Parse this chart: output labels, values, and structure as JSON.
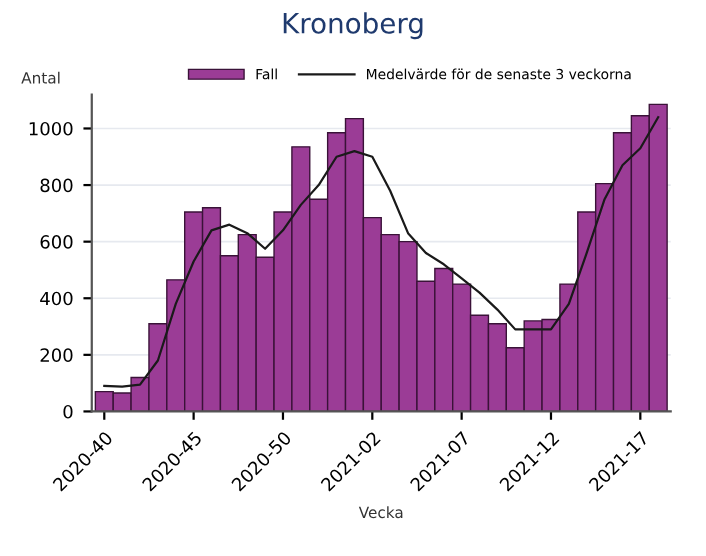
{
  "chart_data": {
    "type": "bar",
    "title": "Kronoberg",
    "xlabel": "Vecka",
    "ylabel": "Antal",
    "categories": [
      "2020-40",
      null,
      null,
      null,
      null,
      "2020-45",
      null,
      null,
      null,
      null,
      "2020-50",
      null,
      null,
      null,
      null,
      "2021-02",
      null,
      null,
      null,
      null,
      "2021-07",
      null,
      null,
      null,
      null,
      "2021-12",
      null,
      null,
      null,
      null,
      "2021-17",
      null
    ],
    "series": [
      {
        "name": "Fall",
        "color": "#9b3c96",
        "values": [
          70,
          65,
          120,
          310,
          465,
          705,
          720,
          550,
          625,
          545,
          705,
          935,
          750,
          985,
          1035,
          685,
          625,
          600,
          460,
          505,
          450,
          340,
          310,
          225,
          320,
          325,
          450,
          705,
          805,
          985,
          1045,
          1085
        ]
      },
      {
        "name": "Medelvärde för de senaste 3 veckorna",
        "type": "line",
        "color": "#1a1a1a",
        "values": [
          90,
          88,
          95,
          180,
          380,
          530,
          640,
          660,
          630,
          575,
          640,
          730,
          800,
          900,
          920,
          900,
          780,
          630,
          560,
          520,
          470,
          420,
          360,
          290,
          290,
          290,
          380,
          560,
          750,
          870,
          930,
          1040
        ]
      }
    ],
    "ylim": [
      0,
      1120
    ],
    "yticks": [
      0,
      200,
      400,
      600,
      800,
      1000
    ],
    "grid": "y",
    "legend": "top"
  }
}
